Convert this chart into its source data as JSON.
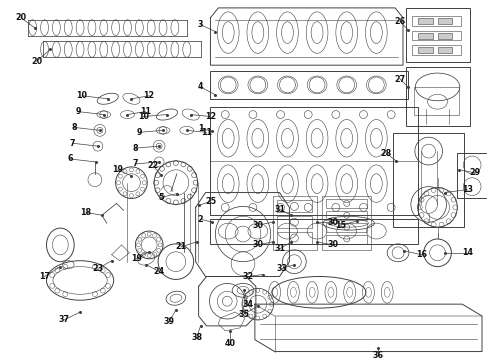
{
  "background_color": "#ffffff",
  "line_color": "#404040",
  "label_color": "#111111",
  "font_size": 5.8,
  "fig_width": 4.9,
  "fig_height": 3.6,
  "dpi": 100,
  "label_fontsize": 5.8,
  "lw_main": 0.7,
  "lw_thin": 0.4,
  "lw_med": 0.55
}
